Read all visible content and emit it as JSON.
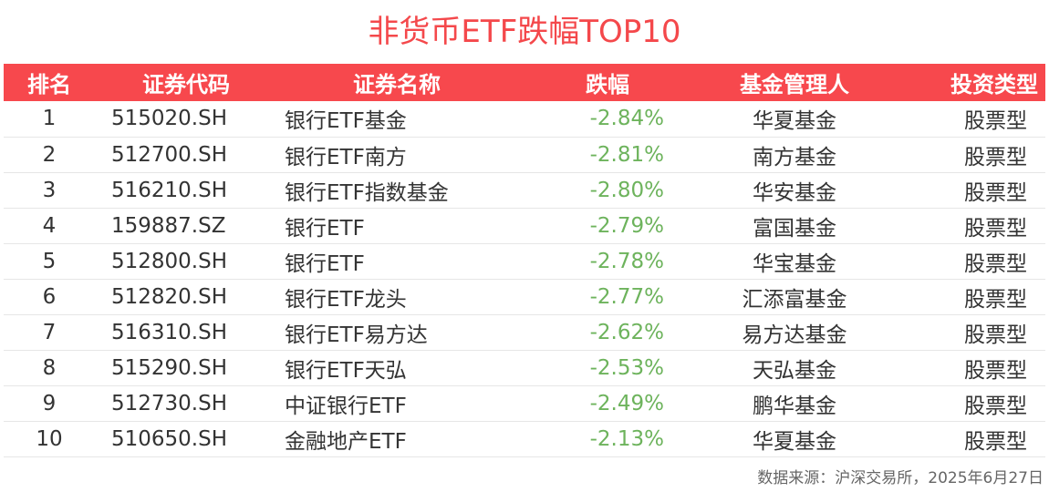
{
  "title": "非货币ETF跌幅TOP10",
  "headers": {
    "rank": "排名",
    "code": "证券代码",
    "name": "证券名称",
    "change": "跌幅",
    "manager": "基金管理人",
    "type": "投资类型"
  },
  "rows": [
    {
      "rank": "1",
      "code": "515020.SH",
      "name": "银行ETF基金",
      "change": "-2.84%",
      "manager": "华夏基金",
      "type": "股票型"
    },
    {
      "rank": "2",
      "code": "512700.SH",
      "name": "银行ETF南方",
      "change": "-2.81%",
      "manager": "南方基金",
      "type": "股票型"
    },
    {
      "rank": "3",
      "code": "516210.SH",
      "name": "银行ETF指数基金",
      "change": "-2.80%",
      "manager": "华安基金",
      "type": "股票型"
    },
    {
      "rank": "4",
      "code": "159887.SZ",
      "name": "银行ETF",
      "change": "-2.79%",
      "manager": "富国基金",
      "type": "股票型"
    },
    {
      "rank": "5",
      "code": "512800.SH",
      "name": "银行ETF",
      "change": "-2.78%",
      "manager": "华宝基金",
      "type": "股票型"
    },
    {
      "rank": "6",
      "code": "512820.SH",
      "name": "银行ETF龙头",
      "change": "-2.77%",
      "manager": "汇添富基金",
      "type": "股票型"
    },
    {
      "rank": "7",
      "code": "516310.SH",
      "name": "银行ETF易方达",
      "change": "-2.62%",
      "manager": "易方达基金",
      "type": "股票型"
    },
    {
      "rank": "8",
      "code": "515290.SH",
      "name": "银行ETF天弘",
      "change": "-2.53%",
      "manager": "天弘基金",
      "type": "股票型"
    },
    {
      "rank": "9",
      "code": "512730.SH",
      "name": "中证银行ETF",
      "change": "-2.49%",
      "manager": "鹏华基金",
      "type": "股票型"
    },
    {
      "rank": "10",
      "code": "510650.SH",
      "name": "金融地产ETF",
      "change": "-2.13%",
      "manager": "华夏基金",
      "type": "股票型"
    }
  ],
  "source": "数据来源：沪深交易所，2025年6月27日",
  "colors": {
    "header_bg": "#f7484d",
    "title": "#f4484b",
    "decline": "#6db35c"
  }
}
